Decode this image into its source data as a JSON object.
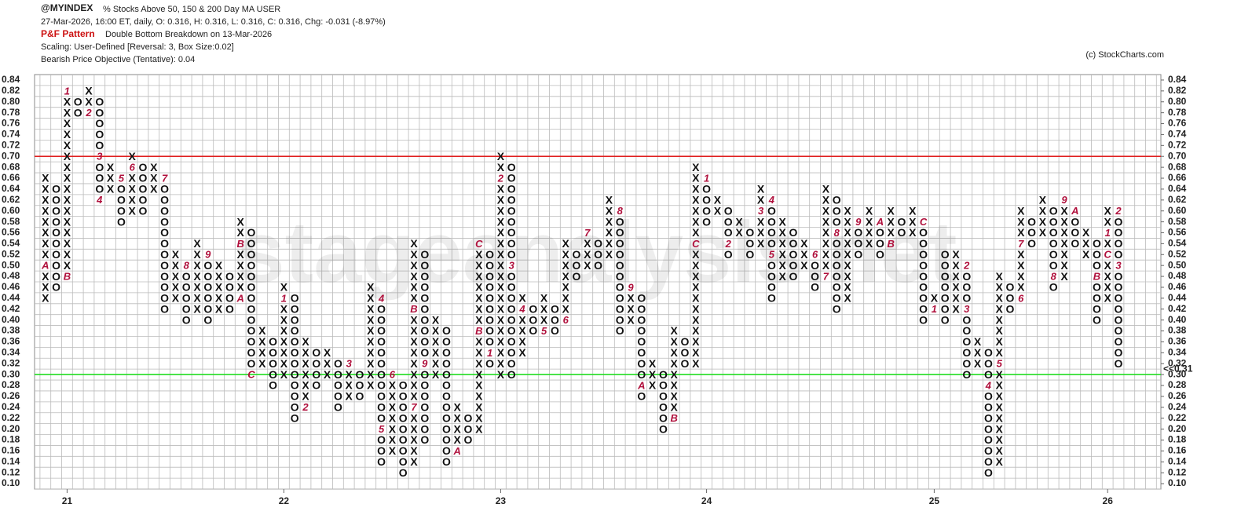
{
  "header": {
    "symbol": "@MYINDEX",
    "name": "% Stocks Above 50, 150 & 200 Day MA  USER",
    "quote": "27-Mar-2026, 16:00 ET, daily, O: 0.316, H: 0.316, L: 0.316, C: 0.316, Chg: -0.031 (-8.97%)",
    "pattern_label": "P&F Pattern",
    "pattern": "Double Bottom Breakdown on 13-Mar-2026",
    "scaling": "Scaling: User-Defined [Reversal: 3, Box Size:0.02]",
    "objective": "Bearish Price Objective (Tentative): 0.04",
    "copyright": "(c) StockCharts.com",
    "watermark": "stageanalysis.net"
  },
  "chart_data": {
    "type": "point-and-figure",
    "ylim": [
      0.09,
      0.85
    ],
    "yticks": [
      {
        "value": 0.1,
        "label": "0.10"
      },
      0.12,
      0.14,
      0.16,
      0.18,
      {
        "value": 0.2,
        "label": "0.20"
      },
      0.22,
      0.24,
      0.26,
      0.28,
      {
        "value": 0.3,
        "label": "0.30"
      },
      0.32,
      0.34,
      0.36,
      0.38,
      {
        "value": 0.4,
        "label": "0.40"
      },
      0.42,
      0.44,
      0.46,
      0.48,
      {
        "value": 0.5,
        "label": "0.50"
      },
      0.52,
      0.54,
      0.56,
      0.58,
      {
        "value": 0.6,
        "label": "0.60"
      },
      0.62,
      0.64,
      0.66,
      0.68,
      {
        "value": 0.7,
        "label": "0.70"
      },
      0.72,
      0.74,
      0.76,
      0.78,
      {
        "value": 0.8,
        "label": "0.80"
      },
      0.82,
      0.84
    ],
    "highlight_ytick": 0.3,
    "last": {
      "value": 0.31,
      "label": "<<0.31"
    },
    "lines": [
      {
        "value": 0.7,
        "color": "#e02020"
      },
      {
        "value": 0.3,
        "color": "#22dd22"
      }
    ],
    "x_labels": [
      {
        "column": 2,
        "label": "21"
      },
      {
        "column": 22,
        "label": "22"
      },
      {
        "column": 42,
        "label": "23"
      },
      {
        "column": 61,
        "label": "24"
      },
      {
        "column": 82,
        "label": "25"
      },
      {
        "column": 98,
        "label": "26"
      }
    ],
    "box_color": "#111111",
    "mark_color": "#b0103c",
    "grid": true,
    "columns": [
      {
        "box": "X",
        "low": 0.44,
        "high": 0.66,
        "marks": [
          {
            "value": 0.5,
            "label": "A"
          }
        ]
      },
      {
        "box": "O",
        "low": 0.46,
        "high": 0.64,
        "marks": []
      },
      {
        "box": "X",
        "low": 0.48,
        "high": 0.82,
        "marks": [
          {
            "value": 0.82,
            "label": "1"
          },
          {
            "value": 0.48,
            "label": "B"
          }
        ]
      },
      {
        "box": "O",
        "low": 0.78,
        "high": 0.8,
        "marks": []
      },
      {
        "box": "X",
        "low": 0.78,
        "high": 0.82,
        "marks": [
          {
            "value": 0.78,
            "label": "2"
          }
        ]
      },
      {
        "box": "O",
        "low": 0.62,
        "high": 0.8,
        "marks": [
          {
            "value": 0.7,
            "label": "3"
          },
          {
            "value": 0.62,
            "label": "4"
          }
        ]
      },
      {
        "box": "X",
        "low": 0.64,
        "high": 0.68,
        "marks": []
      },
      {
        "box": "O",
        "low": 0.58,
        "high": 0.66,
        "marks": [
          {
            "value": 0.66,
            "label": "5"
          }
        ]
      },
      {
        "box": "X",
        "low": 0.6,
        "high": 0.7,
        "marks": [
          {
            "value": 0.68,
            "label": "6"
          }
        ]
      },
      {
        "box": "O",
        "low": 0.6,
        "high": 0.68,
        "marks": []
      },
      {
        "box": "X",
        "low": 0.64,
        "high": 0.68,
        "marks": []
      },
      {
        "box": "O",
        "low": 0.42,
        "high": 0.66,
        "marks": [
          {
            "value": 0.66,
            "label": "7"
          }
        ]
      },
      {
        "box": "X",
        "low": 0.44,
        "high": 0.52,
        "marks": []
      },
      {
        "box": "O",
        "low": 0.4,
        "high": 0.5,
        "marks": [
          {
            "value": 0.5,
            "label": "8"
          }
        ]
      },
      {
        "box": "X",
        "low": 0.42,
        "high": 0.54,
        "marks": []
      },
      {
        "box": "O",
        "low": 0.4,
        "high": 0.52,
        "marks": [
          {
            "value": 0.52,
            "label": "9"
          }
        ]
      },
      {
        "box": "X",
        "low": 0.42,
        "high": 0.5,
        "marks": []
      },
      {
        "box": "O",
        "low": 0.42,
        "high": 0.48,
        "marks": []
      },
      {
        "box": "X",
        "low": 0.44,
        "high": 0.58,
        "marks": [
          {
            "value": 0.44,
            "label": "A"
          },
          {
            "value": 0.54,
            "label": "B"
          }
        ]
      },
      {
        "box": "O",
        "low": 0.3,
        "high": 0.56,
        "marks": [
          {
            "value": 0.3,
            "label": "C"
          }
        ]
      },
      {
        "box": "X",
        "low": 0.32,
        "high": 0.38,
        "marks": []
      },
      {
        "box": "O",
        "low": 0.28,
        "high": 0.36,
        "marks": []
      },
      {
        "box": "X",
        "low": 0.3,
        "high": 0.46,
        "marks": [
          {
            "value": 0.44,
            "label": "1"
          }
        ]
      },
      {
        "box": "O",
        "low": 0.22,
        "high": 0.44,
        "marks": []
      },
      {
        "box": "X",
        "low": 0.24,
        "high": 0.36,
        "marks": [
          {
            "value": 0.24,
            "label": "2"
          }
        ]
      },
      {
        "box": "O",
        "low": 0.28,
        "high": 0.34,
        "marks": []
      },
      {
        "box": "X",
        "low": 0.3,
        "high": 0.34,
        "marks": []
      },
      {
        "box": "O",
        "low": 0.24,
        "high": 0.32,
        "marks": []
      },
      {
        "box": "X",
        "low": 0.26,
        "high": 0.32,
        "marks": [
          {
            "value": 0.32,
            "label": "3"
          }
        ]
      },
      {
        "box": "O",
        "low": 0.26,
        "high": 0.3,
        "marks": []
      },
      {
        "box": "X",
        "low": 0.28,
        "high": 0.46,
        "marks": []
      },
      {
        "box": "O",
        "low": 0.14,
        "high": 0.44,
        "marks": [
          {
            "value": 0.44,
            "label": "4"
          },
          {
            "value": 0.2,
            "label": "5"
          }
        ]
      },
      {
        "box": "X",
        "low": 0.16,
        "high": 0.3,
        "marks": [
          {
            "value": 0.3,
            "label": "6"
          }
        ]
      },
      {
        "box": "O",
        "low": 0.12,
        "high": 0.28,
        "marks": []
      },
      {
        "box": "X",
        "low": 0.14,
        "high": 0.54,
        "marks": [
          {
            "value": 0.24,
            "label": "7"
          },
          {
            "value": 0.42,
            "label": "B"
          }
        ]
      },
      {
        "box": "O",
        "low": 0.18,
        "high": 0.52,
        "marks": [
          {
            "value": 0.32,
            "label": "9"
          }
        ]
      },
      {
        "box": "X",
        "low": 0.3,
        "high": 0.4,
        "marks": []
      },
      {
        "box": "O",
        "low": 0.14,
        "high": 0.38,
        "marks": []
      },
      {
        "box": "X",
        "low": 0.16,
        "high": 0.24,
        "marks": [
          {
            "value": 0.16,
            "label": "A"
          }
        ]
      },
      {
        "box": "O",
        "low": 0.18,
        "high": 0.22,
        "marks": []
      },
      {
        "box": "X",
        "low": 0.2,
        "high": 0.54,
        "marks": [
          {
            "value": 0.38,
            "label": "B"
          },
          {
            "value": 0.54,
            "label": "C"
          }
        ]
      },
      {
        "box": "O",
        "low": 0.32,
        "high": 0.52,
        "marks": [
          {
            "value": 0.34,
            "label": "1"
          }
        ]
      },
      {
        "box": "X",
        "low": 0.3,
        "high": 0.7,
        "marks": [
          {
            "value": 0.66,
            "label": "2"
          }
        ]
      },
      {
        "box": "O",
        "low": 0.3,
        "high": 0.68,
        "marks": [
          {
            "value": 0.5,
            "label": "3"
          }
        ]
      },
      {
        "box": "X",
        "low": 0.34,
        "high": 0.44,
        "marks": [
          {
            "value": 0.42,
            "label": "4"
          }
        ]
      },
      {
        "box": "O",
        "low": 0.38,
        "high": 0.42,
        "marks": []
      },
      {
        "box": "X",
        "low": 0.38,
        "high": 0.44,
        "marks": [
          {
            "value": 0.38,
            "label": "5"
          }
        ]
      },
      {
        "box": "O",
        "low": 0.38,
        "high": 0.42,
        "marks": []
      },
      {
        "box": "X",
        "low": 0.4,
        "high": 0.54,
        "marks": [
          {
            "value": 0.4,
            "label": "6"
          }
        ]
      },
      {
        "box": "O",
        "low": 0.48,
        "high": 0.52,
        "marks": []
      },
      {
        "box": "X",
        "low": 0.5,
        "high": 0.56,
        "marks": [
          {
            "value": 0.56,
            "label": "7"
          }
        ]
      },
      {
        "box": "O",
        "low": 0.5,
        "high": 0.54,
        "marks": []
      },
      {
        "box": "X",
        "low": 0.52,
        "high": 0.62,
        "marks": []
      },
      {
        "box": "O",
        "low": 0.38,
        "high": 0.6,
        "marks": [
          {
            "value": 0.6,
            "label": "8"
          }
        ]
      },
      {
        "box": "X",
        "low": 0.4,
        "high": 0.46,
        "marks": [
          {
            "value": 0.46,
            "label": "9"
          }
        ]
      },
      {
        "box": "O",
        "low": 0.26,
        "high": 0.44,
        "marks": [
          {
            "value": 0.28,
            "label": "A"
          }
        ]
      },
      {
        "box": "X",
        "low": 0.28,
        "high": 0.32,
        "marks": []
      },
      {
        "box": "O",
        "low": 0.2,
        "high": 0.3,
        "marks": []
      },
      {
        "box": "X",
        "low": 0.22,
        "high": 0.38,
        "marks": [
          {
            "value": 0.22,
            "label": "B"
          }
        ]
      },
      {
        "box": "O",
        "low": 0.32,
        "high": 0.36,
        "marks": []
      },
      {
        "box": "X",
        "low": 0.32,
        "high": 0.68,
        "marks": [
          {
            "value": 0.54,
            "label": "C"
          }
        ]
      },
      {
        "box": "O",
        "low": 0.58,
        "high": 0.66,
        "marks": [
          {
            "value": 0.66,
            "label": "1"
          }
        ]
      },
      {
        "box": "X",
        "low": 0.6,
        "high": 0.62,
        "marks": []
      },
      {
        "box": "O",
        "low": 0.52,
        "high": 0.6,
        "marks": [
          {
            "value": 0.54,
            "label": "2"
          }
        ]
      },
      {
        "box": "X",
        "low": 0.56,
        "high": 0.58,
        "marks": []
      },
      {
        "box": "O",
        "low": 0.52,
        "high": 0.56,
        "marks": []
      },
      {
        "box": "X",
        "low": 0.54,
        "high": 0.64,
        "marks": [
          {
            "value": 0.6,
            "label": "3"
          }
        ]
      },
      {
        "box": "O",
        "low": 0.44,
        "high": 0.62,
        "marks": [
          {
            "value": 0.62,
            "label": "4"
          },
          {
            "value": 0.52,
            "label": "5"
          }
        ]
      },
      {
        "box": "X",
        "low": 0.48,
        "high": 0.58,
        "marks": []
      },
      {
        "box": "O",
        "low": 0.48,
        "high": 0.56,
        "marks": []
      },
      {
        "box": "X",
        "low": 0.5,
        "high": 0.54,
        "marks": []
      },
      {
        "box": "O",
        "low": 0.46,
        "high": 0.52,
        "marks": [
          {
            "value": 0.52,
            "label": "6"
          }
        ]
      },
      {
        "box": "X",
        "low": 0.48,
        "high": 0.64,
        "marks": [
          {
            "value": 0.48,
            "label": "7"
          }
        ]
      },
      {
        "box": "O",
        "low": 0.42,
        "high": 0.62,
        "marks": [
          {
            "value": 0.56,
            "label": "8"
          }
        ]
      },
      {
        "box": "X",
        "low": 0.44,
        "high": 0.6,
        "marks": []
      },
      {
        "box": "O",
        "low": 0.52,
        "high": 0.58,
        "marks": [
          {
            "value": 0.58,
            "label": "9"
          }
        ]
      },
      {
        "box": "X",
        "low": 0.54,
        "high": 0.6,
        "marks": []
      },
      {
        "box": "O",
        "low": 0.52,
        "high": 0.58,
        "marks": [
          {
            "value": 0.58,
            "label": "A"
          }
        ]
      },
      {
        "box": "X",
        "low": 0.54,
        "high": 0.6,
        "marks": [
          {
            "value": 0.54,
            "label": "B"
          }
        ]
      },
      {
        "box": "O",
        "low": 0.56,
        "high": 0.58,
        "marks": []
      },
      {
        "box": "X",
        "low": 0.56,
        "high": 0.6,
        "marks": []
      },
      {
        "box": "O",
        "low": 0.4,
        "high": 0.58,
        "marks": [
          {
            "value": 0.58,
            "label": "C"
          }
        ]
      },
      {
        "box": "X",
        "low": 0.42,
        "high": 0.44,
        "marks": [
          {
            "value": 0.42,
            "label": "1"
          }
        ]
      },
      {
        "box": "O",
        "low": 0.4,
        "high": 0.52,
        "marks": []
      },
      {
        "box": "X",
        "low": 0.42,
        "high": 0.52,
        "marks": []
      },
      {
        "box": "O",
        "low": 0.3,
        "high": 0.5,
        "marks": [
          {
            "value": 0.5,
            "label": "2"
          },
          {
            "value": 0.42,
            "label": "3"
          }
        ]
      },
      {
        "box": "X",
        "low": 0.32,
        "high": 0.36,
        "marks": []
      },
      {
        "box": "O",
        "low": 0.12,
        "high": 0.34,
        "marks": [
          {
            "value": 0.28,
            "label": "4"
          }
        ]
      },
      {
        "box": "X",
        "low": 0.14,
        "high": 0.48,
        "marks": [
          {
            "value": 0.32,
            "label": "5"
          }
        ]
      },
      {
        "box": "O",
        "low": 0.42,
        "high": 0.46,
        "marks": []
      },
      {
        "box": "X",
        "low": 0.44,
        "high": 0.6,
        "marks": [
          {
            "value": 0.44,
            "label": "6"
          },
          {
            "value": 0.54,
            "label": "7"
          }
        ]
      },
      {
        "box": "O",
        "low": 0.54,
        "high": 0.58,
        "marks": []
      },
      {
        "box": "X",
        "low": 0.56,
        "high": 0.62,
        "marks": []
      },
      {
        "box": "O",
        "low": 0.46,
        "high": 0.6,
        "marks": [
          {
            "value": 0.48,
            "label": "8"
          }
        ]
      },
      {
        "box": "X",
        "low": 0.48,
        "high": 0.62,
        "marks": [
          {
            "value": 0.62,
            "label": "9"
          }
        ]
      },
      {
        "box": "O",
        "low": 0.54,
        "high": 0.6,
        "marks": [
          {
            "value": 0.6,
            "label": "A"
          }
        ]
      },
      {
        "box": "X",
        "low": 0.52,
        "high": 0.56,
        "marks": []
      },
      {
        "box": "O",
        "low": 0.4,
        "high": 0.54,
        "marks": [
          {
            "value": 0.48,
            "label": "B"
          }
        ]
      },
      {
        "box": "X",
        "low": 0.44,
        "high": 0.6,
        "marks": [
          {
            "value": 0.52,
            "label": "C"
          },
          {
            "value": 0.56,
            "label": "1"
          }
        ]
      },
      {
        "box": "O",
        "low": 0.32,
        "high": 0.6,
        "marks": [
          {
            "value": 0.6,
            "label": "2"
          },
          {
            "value": 0.5,
            "label": "3"
          }
        ]
      }
    ]
  }
}
